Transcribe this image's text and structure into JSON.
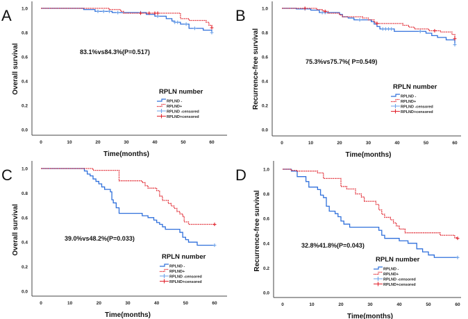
{
  "colors": {
    "blue": "#2e6fdb",
    "red": "#e0202a",
    "blue_censored": "#6aa0e8"
  },
  "chart_data": [
    {
      "type": "line",
      "panel_label": "A",
      "xlabel": "Time(months)",
      "ylabel": "Overall survival",
      "xlim": [
        0,
        60
      ],
      "ylim": [
        0,
        1.0
      ],
      "xticks": [
        "0",
        "10",
        "20",
        "30",
        "40",
        "50",
        "60"
      ],
      "yticks": [
        "0.0",
        "0.2",
        "0.4",
        "0.6",
        "0.8",
        "1.0"
      ],
      "annotation": "83.1%vs84.3%(P=0.517)",
      "legend_title": "RPLN number",
      "legend": [
        "RPLND -",
        "RPLND+",
        "RPLND -censored",
        "RPLND+censored"
      ],
      "series": [
        {
          "name": "RPLND -",
          "color": "blue",
          "steps": [
            [
              0,
              1
            ],
            [
              15,
              0.99
            ],
            [
              19,
              0.975
            ],
            [
              25,
              0.965
            ],
            [
              37,
              0.95
            ],
            [
              40,
              0.935
            ],
            [
              44,
              0.915
            ],
            [
              46,
              0.895
            ],
            [
              47,
              0.885
            ],
            [
              49,
              0.87
            ],
            [
              52,
              0.835
            ],
            [
              57,
              0.82
            ],
            [
              60,
              0.8
            ]
          ],
          "censored": [
            20,
            22,
            24,
            27,
            35,
            41,
            47,
            48,
            51,
            54,
            60
          ]
        },
        {
          "name": "RPLND+",
          "color": "red",
          "steps": [
            [
              0,
              1
            ],
            [
              24,
              0.99
            ],
            [
              28,
              0.975
            ],
            [
              29,
              0.96
            ],
            [
              49,
              0.915
            ],
            [
              52,
              0.9
            ],
            [
              58,
              0.885
            ],
            [
              59,
              0.86
            ],
            [
              60,
              0.84
            ]
          ],
          "censored": [
            35,
            38,
            40,
            41,
            60
          ]
        }
      ]
    },
    {
      "type": "line",
      "panel_label": "B",
      "xlabel": "Time(months)",
      "ylabel": "Recurrence-free survival",
      "xlim": [
        0,
        60
      ],
      "ylim": [
        0,
        1.0
      ],
      "xticks": [
        "0",
        "10",
        "20",
        "30",
        "40",
        "50",
        "60"
      ],
      "yticks": [
        "0.0",
        "0.2",
        "0.4",
        "0.6",
        "0.8",
        "1.0"
      ],
      "annotation": "75.3%vs75.7%( P=0.549)",
      "legend_title": "RPLN number",
      "legend": [
        "RPLND -",
        "RPLND+",
        "RPLND -censored",
        "RPLND+censored"
      ],
      "series": [
        {
          "name": "RPLND -",
          "color": "blue",
          "steps": [
            [
              0,
              1
            ],
            [
              5,
              0.995
            ],
            [
              10,
              0.985
            ],
            [
              13,
              0.965
            ],
            [
              20,
              0.95
            ],
            [
              21,
              0.93
            ],
            [
              23,
              0.92
            ],
            [
              25,
              0.905
            ],
            [
              31,
              0.89
            ],
            [
              32,
              0.87
            ],
            [
              33,
              0.85
            ],
            [
              34,
              0.83
            ],
            [
              39,
              0.81
            ],
            [
              50,
              0.795
            ],
            [
              52,
              0.775
            ],
            [
              54,
              0.76
            ],
            [
              57,
              0.74
            ],
            [
              60,
              0.7
            ]
          ],
          "censored": [
            8,
            14,
            15,
            27,
            35,
            36,
            37,
            38,
            48,
            60
          ]
        },
        {
          "name": "RPLND+",
          "color": "red",
          "steps": [
            [
              0,
              1
            ],
            [
              12,
              0.99
            ],
            [
              14,
              0.98
            ],
            [
              15,
              0.975
            ],
            [
              16,
              0.96
            ],
            [
              20,
              0.945
            ],
            [
              21,
              0.93
            ],
            [
              28,
              0.92
            ],
            [
              30,
              0.905
            ],
            [
              32,
              0.885
            ],
            [
              33,
              0.875
            ],
            [
              42,
              0.86
            ],
            [
              44,
              0.845
            ],
            [
              46,
              0.83
            ],
            [
              51,
              0.815
            ],
            [
              55,
              0.805
            ],
            [
              59,
              0.785
            ],
            [
              60,
              0.75
            ]
          ],
          "censored": [
            8,
            15,
            33,
            53,
            60
          ]
        }
      ]
    },
    {
      "type": "line",
      "panel_label": "C",
      "xlabel": "Time(months)",
      "ylabel": "Overall survival",
      "xlim": [
        0,
        60
      ],
      "ylim": [
        0,
        1.0
      ],
      "xticks": [
        "0",
        "10",
        "20",
        "30",
        "40",
        "50",
        "60"
      ],
      "yticks": [
        "0.0",
        "0.2",
        "0.4",
        "0.6",
        "0.8",
        "1.0"
      ],
      "annotation": "39.0%vs48.2%(P=0.033)",
      "legend_title": "RPLN number",
      "legend": [
        "RPLND -",
        "RPLND+",
        "RPLND -censored",
        "RPLND+censored"
      ],
      "series": [
        {
          "name": "RPLND -",
          "color": "blue",
          "steps": [
            [
              0,
              1
            ],
            [
              15,
              0.98
            ],
            [
              16,
              0.955
            ],
            [
              17,
              0.94
            ],
            [
              18,
              0.915
            ],
            [
              19,
              0.895
            ],
            [
              20,
              0.875
            ],
            [
              21,
              0.85
            ],
            [
              22,
              0.83
            ],
            [
              24,
              0.81
            ],
            [
              24.5,
              0.745
            ],
            [
              25,
              0.72
            ],
            [
              26,
              0.68
            ],
            [
              27,
              0.635
            ],
            [
              35,
              0.615
            ],
            [
              37,
              0.6
            ],
            [
              39,
              0.58
            ],
            [
              40,
              0.56
            ],
            [
              41,
              0.545
            ],
            [
              42,
              0.525
            ],
            [
              43,
              0.505
            ],
            [
              48,
              0.48
            ],
            [
              49,
              0.44
            ],
            [
              50,
              0.42
            ],
            [
              51,
              0.4
            ],
            [
              54,
              0.375
            ],
            [
              60,
              0.375
            ]
          ],
          "censored": [
            60
          ]
        },
        {
          "name": "RPLND+",
          "color": "red",
          "steps": [
            [
              0,
              1
            ],
            [
              18,
              0.985
            ],
            [
              27,
              0.9
            ],
            [
              35,
              0.885
            ],
            [
              36,
              0.86
            ],
            [
              37,
              0.84
            ],
            [
              40,
              0.82
            ],
            [
              41,
              0.775
            ],
            [
              42,
              0.74
            ],
            [
              44,
              0.715
            ],
            [
              45,
              0.695
            ],
            [
              46,
              0.675
            ],
            [
              47,
              0.65
            ],
            [
              48,
              0.63
            ],
            [
              49,
              0.61
            ],
            [
              49.5,
              0.565
            ],
            [
              51,
              0.545
            ],
            [
              60,
              0.545
            ]
          ],
          "censored": [
            60
          ]
        }
      ]
    },
    {
      "type": "line",
      "panel_label": "D",
      "xlabel": "Time(months)",
      "ylabel": "Recurrence-free survival",
      "xlim": [
        0,
        60
      ],
      "ylim": [
        0,
        1.0
      ],
      "xticks": [
        "0",
        "10",
        "20",
        "30",
        "40",
        "50",
        "60"
      ],
      "yticks": [
        "0.0",
        "0.2",
        "0.4",
        "0.6",
        "0.8",
        "1.0"
      ],
      "annotation": "32.8%41.8%(P=0.043)",
      "legend_title": "RPLN number",
      "legend": [
        "RPLND -",
        "RPLND+",
        "RPLND -censored",
        "RPLND+censored"
      ],
      "series": [
        {
          "name": "RPLND -",
          "color": "blue",
          "steps": [
            [
              0,
              1
            ],
            [
              3,
              0.985
            ],
            [
              5,
              0.94
            ],
            [
              8,
              0.9
            ],
            [
              9,
              0.855
            ],
            [
              12,
              0.835
            ],
            [
              13,
              0.79
            ],
            [
              14,
              0.77
            ],
            [
              15,
              0.7
            ],
            [
              16,
              0.66
            ],
            [
              18,
              0.64
            ],
            [
              19,
              0.615
            ],
            [
              20,
              0.58
            ],
            [
              21,
              0.555
            ],
            [
              23,
              0.53
            ],
            [
              33,
              0.505
            ],
            [
              34,
              0.465
            ],
            [
              35,
              0.44
            ],
            [
              40,
              0.42
            ],
            [
              43,
              0.4
            ],
            [
              46,
              0.355
            ],
            [
              48,
              0.33
            ],
            [
              50,
              0.305
            ],
            [
              52,
              0.285
            ],
            [
              60,
              0.285
            ]
          ],
          "censored": [
            60
          ]
        },
        {
          "name": "RPLND+",
          "color": "red",
          "steps": [
            [
              0,
              1
            ],
            [
              3,
              0.99
            ],
            [
              5,
              0.985
            ],
            [
              12,
              0.97
            ],
            [
              14,
              0.925
            ],
            [
              20,
              0.86
            ],
            [
              22,
              0.84
            ],
            [
              25,
              0.8
            ],
            [
              27,
              0.775
            ],
            [
              28,
              0.74
            ],
            [
              32,
              0.715
            ],
            [
              33,
              0.67
            ],
            [
              34,
              0.635
            ],
            [
              35,
              0.61
            ],
            [
              37,
              0.59
            ],
            [
              38,
              0.565
            ],
            [
              39,
              0.54
            ],
            [
              40,
              0.515
            ],
            [
              42,
              0.485
            ],
            [
              54,
              0.465
            ],
            [
              59,
              0.445
            ],
            [
              60,
              0.44
            ]
          ],
          "censored": [
            60
          ]
        }
      ]
    }
  ]
}
